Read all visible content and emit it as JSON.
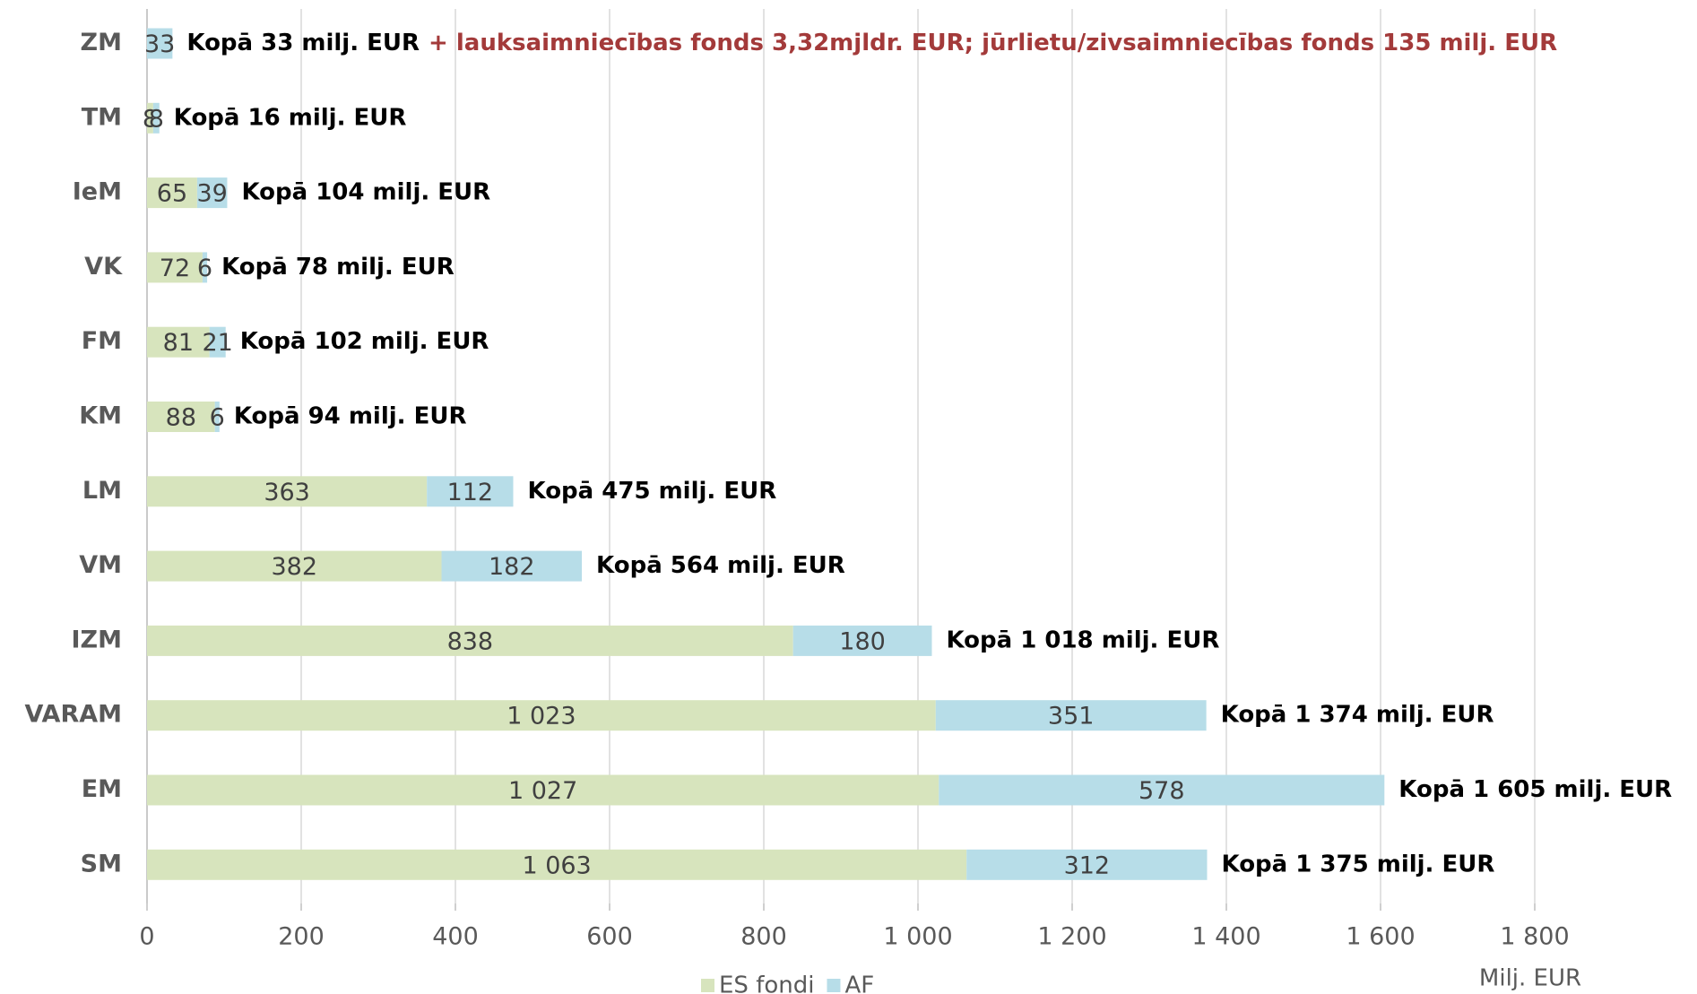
{
  "chart_data": {
    "type": "stacked-bar-horizontal",
    "categories": [
      "ZM",
      "TM",
      "IeM",
      "VK",
      "FM",
      "KM",
      "LM",
      "VM",
      "IZM",
      "VARAM",
      "EM",
      "SM"
    ],
    "series": [
      {
        "name": "ES fondi",
        "color": "#d7e4bd",
        "values": [
          null,
          8,
          65,
          72,
          81,
          88,
          363,
          382,
          838,
          1023,
          1027,
          1063
        ],
        "value_labels": [
          null,
          "8",
          "65",
          "72",
          "81",
          "88",
          "363",
          "382",
          "838",
          "1 023",
          "1 027",
          "1 063"
        ]
      },
      {
        "name": "AF",
        "color": "#b7dde8",
        "values": [
          33,
          8,
          39,
          6,
          21,
          6,
          112,
          182,
          180,
          351,
          578,
          312
        ],
        "value_labels": [
          "33",
          "8",
          "39",
          "6",
          "21",
          "6",
          "112",
          "182",
          "180",
          "351",
          "578",
          "312"
        ]
      }
    ],
    "annotations": [
      "Kopā 33 milj. EUR",
      "Kopā 16 milj. EUR",
      "Kopā 104 milj. EUR",
      "Kopā 78 milj. EUR",
      "Kopā 102 milj. EUR",
      "Kopā 94 milj. EUR",
      "Kopā 475 milj. EUR",
      "Kopā 564 milj. EUR",
      "Kopā 1 018 milj. EUR",
      "Kopā 1 374 milj. EUR",
      "Kopā 1 605 milj. EUR",
      "Kopā 1 375 milj. EUR"
    ],
    "note": "+ lauksaimniecības fonds 3,32mjldr. EUR; jūrlietu/zivsaimniecības fonds 135 milj. EUR",
    "x_label": "Milj. EUR",
    "xlim": [
      0,
      1800
    ],
    "xticks": [
      0,
      200,
      400,
      600,
      800,
      {
        "value": 1000,
        "label": "1 000"
      },
      {
        "value": 1200,
        "label": "1 200"
      },
      {
        "value": 1400,
        "label": "1 400"
      },
      {
        "value": 1600,
        "label": "1 600"
      },
      {
        "value": 1800,
        "label": "1 800"
      }
    ],
    "grid": true
  }
}
